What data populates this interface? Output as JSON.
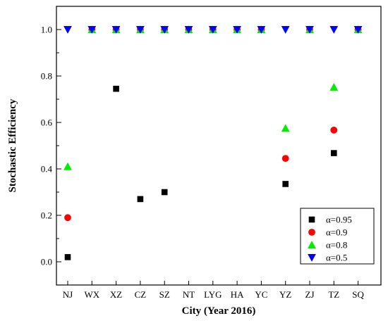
{
  "chart_data": {
    "type": "scatter",
    "xlabel": "City (Year 2016)",
    "ylabel": "Stochastic Efficiency",
    "categories": [
      "NJ",
      "WX",
      "XZ",
      "CZ",
      "SZ",
      "NT",
      "LYG",
      "HA",
      "YC",
      "YZ",
      "ZJ",
      "TZ",
      "SQ"
    ],
    "ylim": [
      -0.1,
      1.1
    ],
    "yticks": [
      "0.0",
      "0.2",
      "0.4",
      "0.6",
      "0.8",
      "1.0"
    ],
    "grid": false,
    "legend_position": "bottom-right",
    "series": [
      {
        "name": "α=0.95",
        "marker": "square",
        "color": "#000000",
        "values": [
          0.02,
          1.0,
          0.745,
          0.27,
          0.3,
          1.0,
          1.0,
          1.0,
          1.0,
          0.335,
          1.0,
          0.468,
          1.0
        ]
      },
      {
        "name": "α=0.9",
        "marker": "circle",
        "color": "#ff0000",
        "values": [
          0.19,
          1.0,
          1.0,
          1.0,
          1.0,
          1.0,
          1.0,
          1.0,
          1.0,
          0.445,
          1.0,
          0.567,
          1.0
        ]
      },
      {
        "name": "α=0.8",
        "marker": "triangle-up",
        "color": "#00ee00",
        "values": [
          0.41,
          1.0,
          1.0,
          1.0,
          1.0,
          1.0,
          1.0,
          1.0,
          1.0,
          0.575,
          1.0,
          0.752,
          1.0
        ]
      },
      {
        "name": "α=0.5",
        "marker": "triangle-down",
        "color": "#0000ff",
        "values": [
          1.0,
          1.0,
          1.0,
          1.0,
          1.0,
          1.0,
          1.0,
          1.0,
          1.0,
          1.0,
          1.0,
          1.0,
          1.0
        ]
      }
    ]
  }
}
